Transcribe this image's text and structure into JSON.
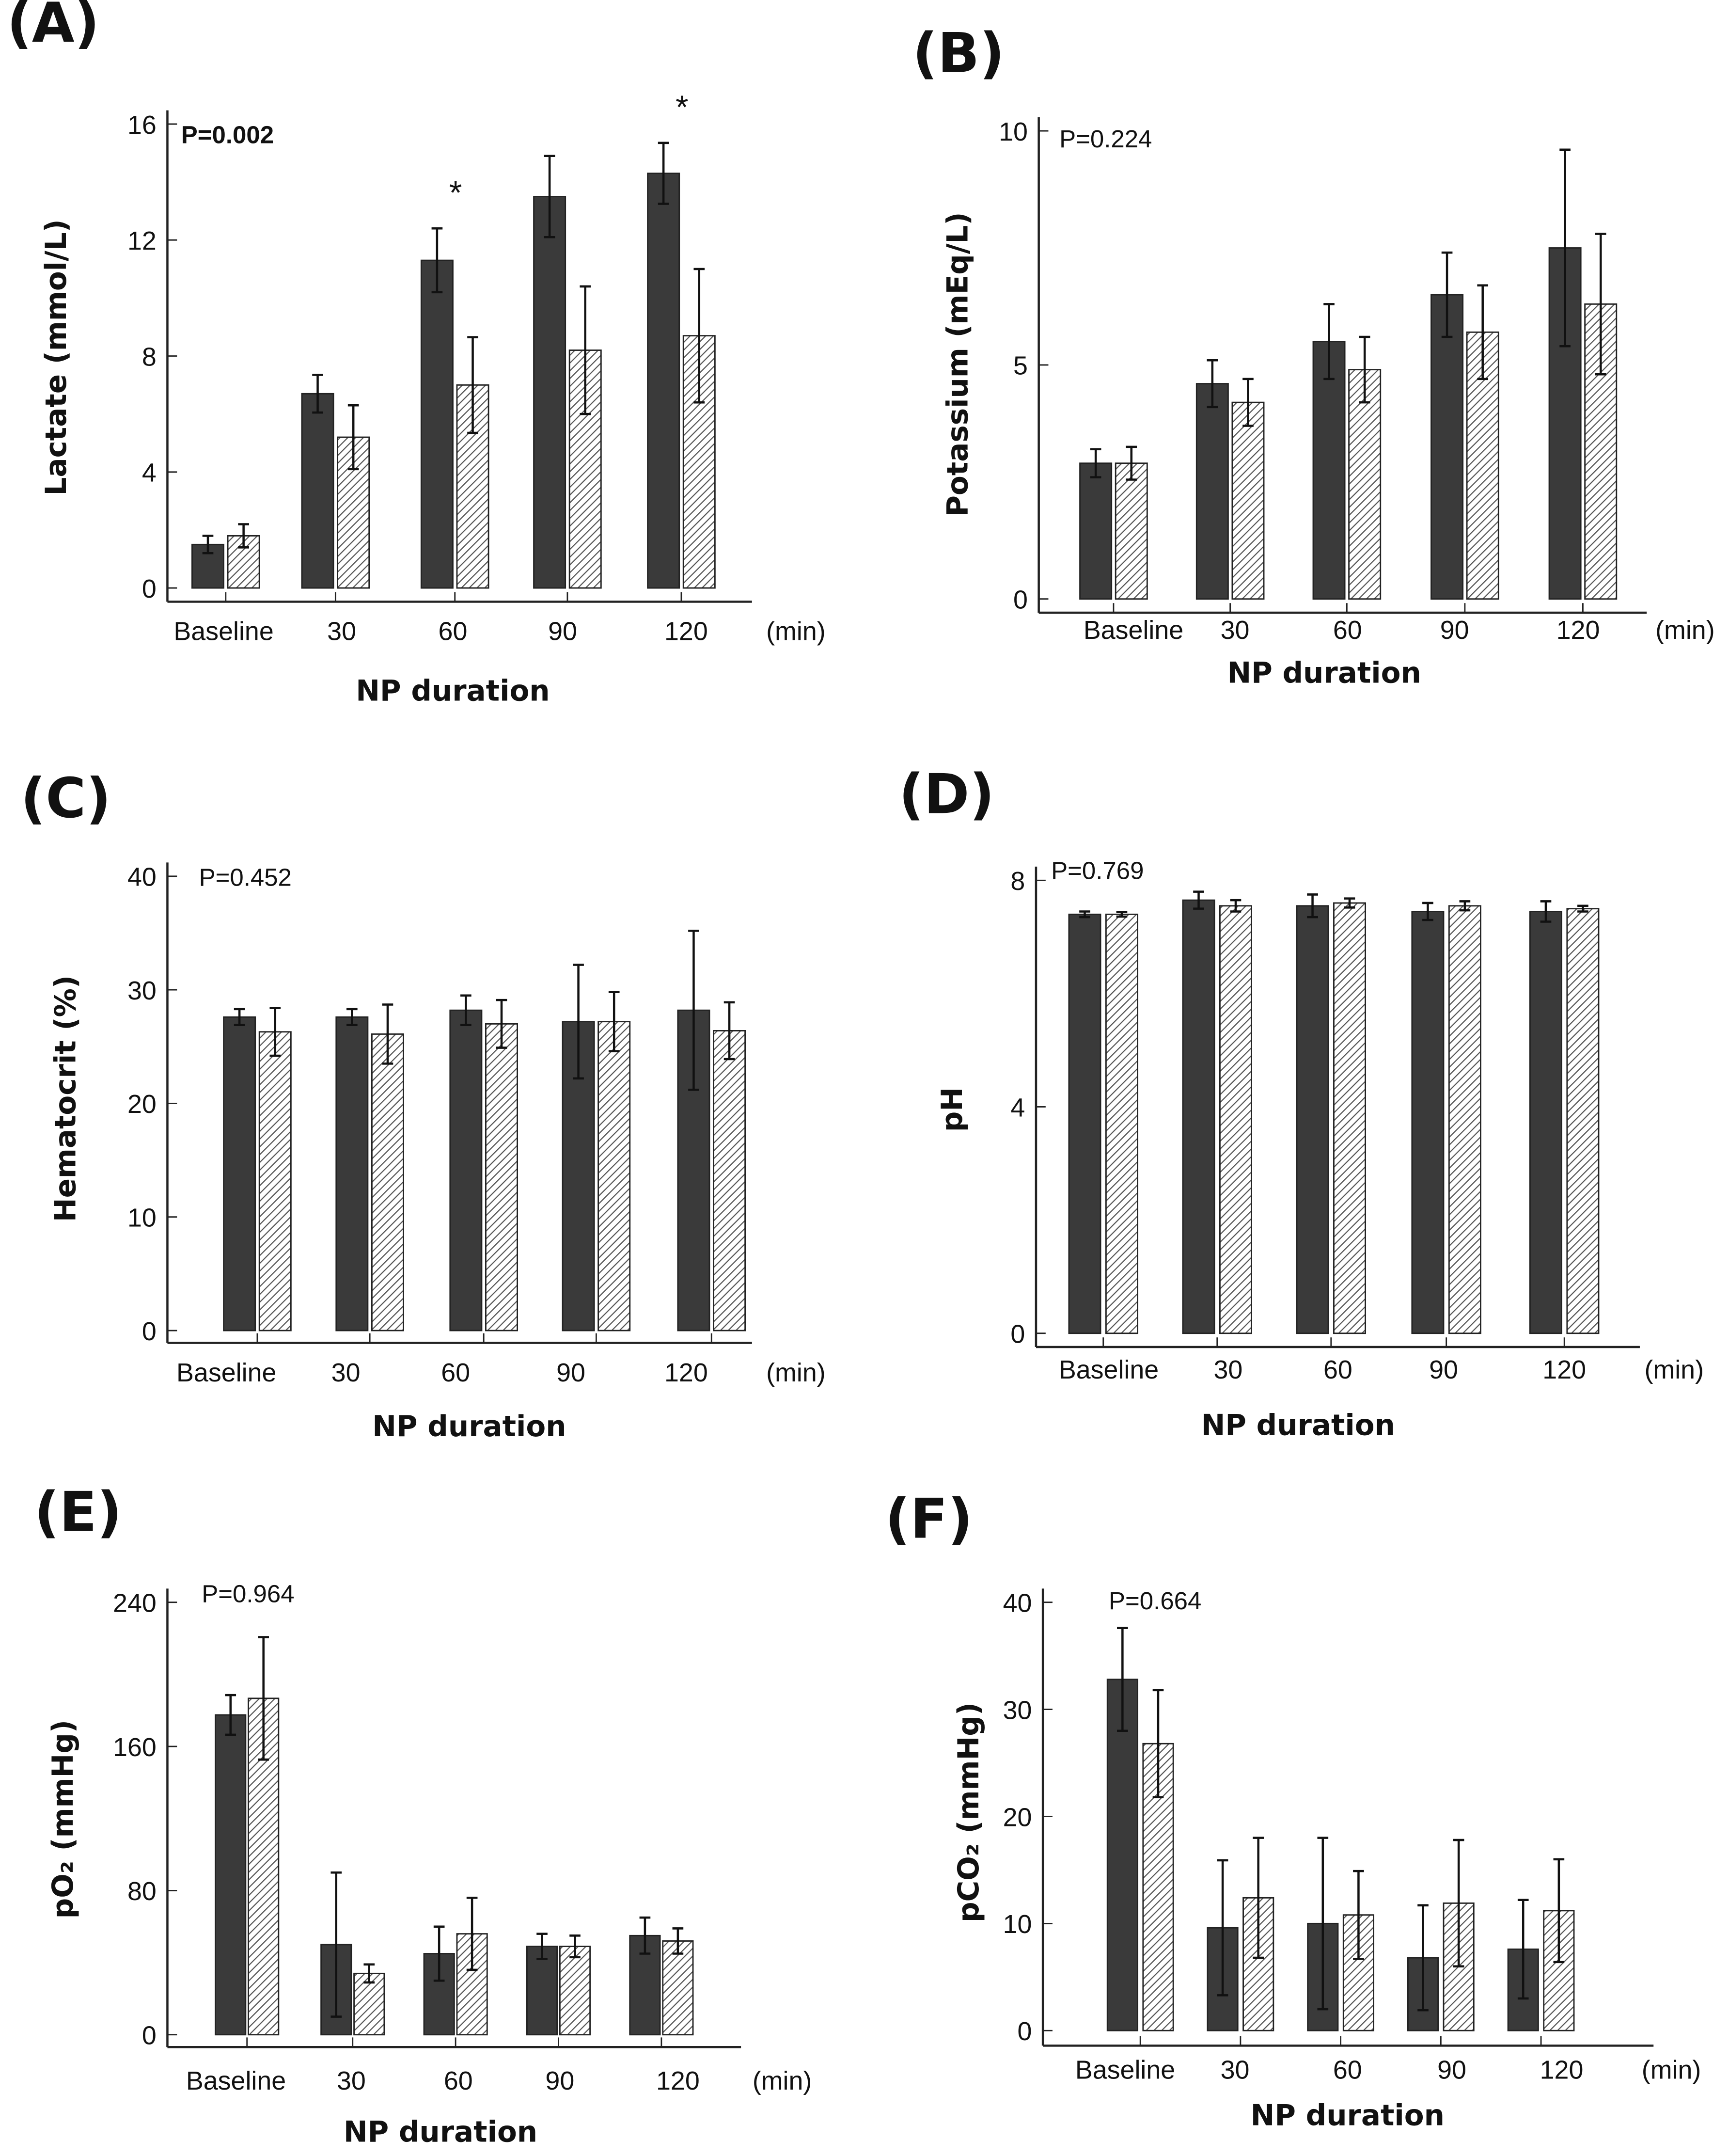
{
  "colors": {
    "group1": "#3a3a3a",
    "group2_hatch": "#555555",
    "axis": "#222222"
  },
  "chart_data": [
    {
      "type": "bar",
      "panel": "(A)",
      "ylabel": "Lactate (mmol/L)",
      "xlabel": "NP duration",
      "unit": "(min)",
      "p_value": "P=0.002",
      "p_bold": true,
      "categories": [
        "Baseline",
        "30",
        "60",
        "90",
        "120"
      ],
      "ylim": [
        0,
        16
      ],
      "yticks": [
        0,
        4,
        8,
        12,
        16
      ],
      "series": [
        {
          "name": "group1",
          "pattern": "solid",
          "values": [
            1.5,
            6.7,
            11.3,
            13.5,
            14.3
          ],
          "errors": [
            0.3,
            0.65,
            1.1,
            1.4,
            1.05
          ]
        },
        {
          "name": "group2",
          "pattern": "hatched",
          "values": [
            1.8,
            5.2,
            7.0,
            8.2,
            8.7
          ],
          "errors": [
            0.4,
            1.1,
            1.65,
            2.2,
            2.3
          ]
        }
      ],
      "annotations": [
        {
          "text": "*",
          "category": "60"
        },
        {
          "text": "*",
          "category": "120"
        }
      ]
    },
    {
      "type": "bar",
      "panel": "(B)",
      "ylabel": "Potassium (mEq/L)",
      "xlabel": "NP duration",
      "unit": "(min)",
      "p_value": "P=0.224",
      "categories": [
        "Baseline",
        "30",
        "60",
        "90",
        "120"
      ],
      "ylim": [
        0,
        10
      ],
      "yticks": [
        0,
        5,
        10
      ],
      "series": [
        {
          "name": "group1",
          "pattern": "solid",
          "values": [
            2.9,
            4.6,
            5.5,
            6.5,
            7.5
          ],
          "errors": [
            0.3,
            0.5,
            0.8,
            0.9,
            2.1
          ]
        },
        {
          "name": "group2",
          "pattern": "hatched",
          "values": [
            2.9,
            4.2,
            4.9,
            5.7,
            6.3
          ],
          "errors": [
            0.35,
            0.5,
            0.7,
            1.0,
            1.5
          ]
        }
      ]
    },
    {
      "type": "bar",
      "panel": "(C)",
      "ylabel": "Hematocrit (%)",
      "xlabel": "NP duration",
      "unit": "(min)",
      "p_value": "P=0.452",
      "categories": [
        "Baseline",
        "30",
        "60",
        "90",
        "120"
      ],
      "ylim": [
        0,
        40
      ],
      "yticks": [
        0,
        10,
        20,
        30,
        40
      ],
      "series": [
        {
          "name": "group1",
          "pattern": "solid",
          "values": [
            27.6,
            27.6,
            28.2,
            27.2,
            28.2
          ],
          "errors": [
            0.7,
            0.7,
            1.3,
            5.0,
            7.0
          ]
        },
        {
          "name": "group2",
          "pattern": "hatched",
          "values": [
            26.3,
            26.1,
            27.0,
            27.2,
            26.4
          ],
          "errors": [
            2.1,
            2.6,
            2.1,
            2.6,
            2.5
          ]
        }
      ]
    },
    {
      "type": "bar",
      "panel": "(D)",
      "ylabel": "pH",
      "xlabel": "NP duration",
      "unit": "(min)",
      "p_value": "P=0.769",
      "categories": [
        "Baseline",
        "30",
        "60",
        "90",
        "120"
      ],
      "ylim": [
        0,
        8
      ],
      "yticks": [
        0,
        4,
        8
      ],
      "series": [
        {
          "name": "group1",
          "pattern": "solid",
          "values": [
            7.4,
            7.65,
            7.55,
            7.45,
            7.45
          ],
          "errors": [
            0.05,
            0.15,
            0.2,
            0.15,
            0.18
          ]
        },
        {
          "name": "group2",
          "pattern": "hatched",
          "values": [
            7.4,
            7.55,
            7.6,
            7.55,
            7.5
          ],
          "errors": [
            0.04,
            0.1,
            0.08,
            0.08,
            0.05
          ]
        }
      ]
    },
    {
      "type": "bar",
      "panel": "(E)",
      "ylabel": "pO₂ (mmHg)",
      "xlabel": "NP duration",
      "unit": "(min)",
      "p_value": "P=0.964",
      "categories": [
        "Baseline",
        "30",
        "60",
        "90",
        "120"
      ],
      "ylim": [
        0,
        240
      ],
      "yticks": [
        0,
        80,
        160,
        240
      ],
      "series": [
        {
          "name": "group1",
          "pattern": "solid",
          "values": [
            177.5,
            50,
            45,
            49,
            55
          ],
          "errors": [
            11,
            40,
            15,
            7,
            10
          ]
        },
        {
          "name": "group2",
          "pattern": "hatched",
          "values": [
            186.7,
            34,
            56,
            49,
            52
          ],
          "errors": [
            34,
            5,
            20,
            6,
            7
          ]
        }
      ]
    },
    {
      "type": "bar",
      "panel": "(F)",
      "ylabel": "pCO₂ (mmHg)",
      "xlabel": "NP duration",
      "unit": "(min)",
      "p_value": "P=0.664",
      "categories": [
        "Baseline",
        "30",
        "60",
        "90",
        "120"
      ],
      "ylim": [
        0,
        40
      ],
      "yticks": [
        0,
        10,
        20,
        30,
        40
      ],
      "series": [
        {
          "name": "group1",
          "pattern": "solid",
          "values": [
            32.8,
            9.6,
            10.0,
            6.8,
            7.6
          ],
          "errors": [
            4.8,
            6.3,
            8.0,
            4.9,
            4.6
          ]
        },
        {
          "name": "group2",
          "pattern": "hatched",
          "values": [
            26.8,
            12.4,
            10.8,
            11.9,
            11.2
          ],
          "errors": [
            5.0,
            5.6,
            4.1,
            5.9,
            4.8
          ]
        }
      ]
    }
  ]
}
